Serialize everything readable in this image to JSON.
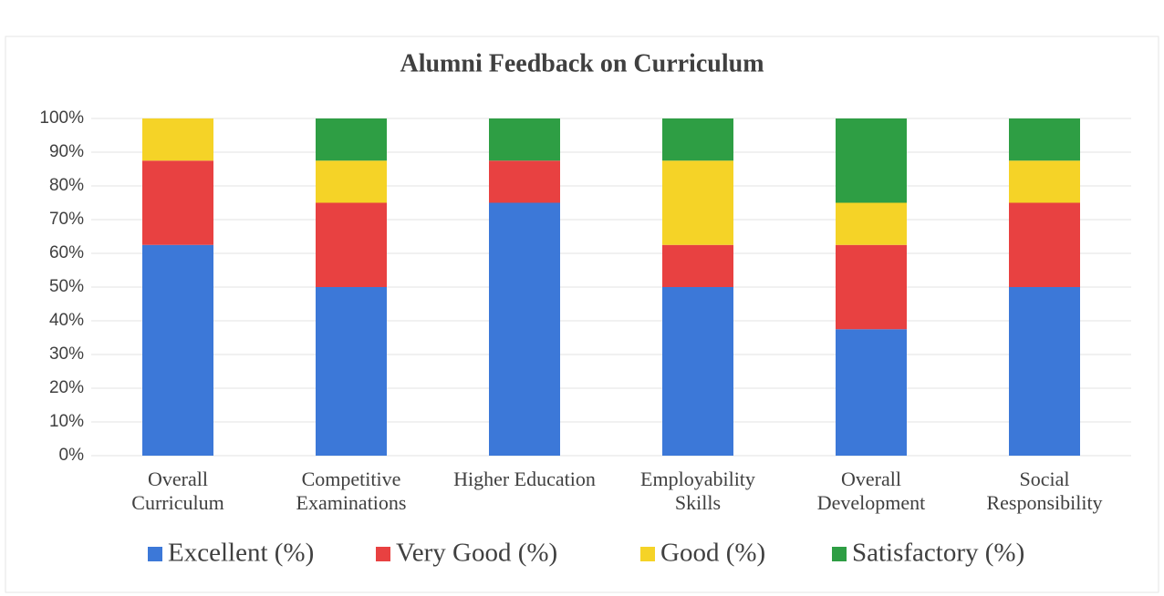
{
  "chart_data": {
    "type": "stacked_bar",
    "title": "Alumni Feedback on Curriculum",
    "categories": [
      "Overall Curriculum",
      "Competitive Examinations",
      "Higher Education",
      "Employability Skills",
      "Overall Development",
      "Social Responsibility"
    ],
    "series": [
      {
        "name": "Excellent (%)",
        "color": "#3c78d8",
        "values": [
          62.5,
          50,
          75,
          50,
          37.5,
          50
        ]
      },
      {
        "name": "Very Good (%)",
        "color": "#e84141",
        "values": [
          25,
          25,
          12.5,
          12.5,
          25,
          25
        ]
      },
      {
        "name": "Good (%)",
        "color": "#f5d327",
        "values": [
          12.5,
          12.5,
          0,
          25,
          12.5,
          12.5
        ]
      },
      {
        "name": "Satisfactory (%)",
        "color": "#2e9e44",
        "values": [
          0,
          12.5,
          12.5,
          12.5,
          25,
          12.5
        ]
      }
    ],
    "ylim": [
      0,
      100
    ],
    "yticks": [
      {
        "value": 0,
        "label": "0%"
      },
      {
        "value": 10,
        "label": "10%"
      },
      {
        "value": 20,
        "label": "20%"
      },
      {
        "value": 30,
        "label": "30%"
      },
      {
        "value": 40,
        "label": "40%"
      },
      {
        "value": 50,
        "label": "50%"
      },
      {
        "value": 60,
        "label": "60%"
      },
      {
        "value": 70,
        "label": "70%"
      },
      {
        "value": 80,
        "label": "80%"
      },
      {
        "value": 90,
        "label": "90%"
      },
      {
        "value": 100,
        "label": "100%"
      }
    ],
    "grid": true,
    "legend": "bottom"
  }
}
